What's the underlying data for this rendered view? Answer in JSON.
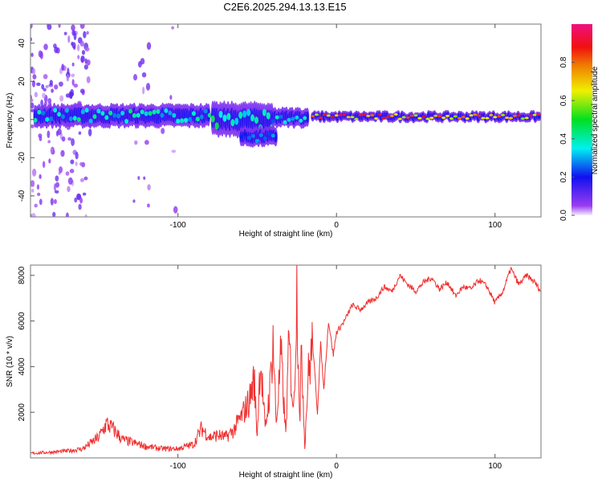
{
  "title": "C2E6.2025.294.13.13.E15",
  "chart_data": [
    {
      "type": "heatmap",
      "name": "spectrogram",
      "xlabel": "Height of straight line (km)",
      "ylabel": "Frequency (Hz)",
      "xlim": [
        -193,
        129
      ],
      "ylim": [
        -51,
        50
      ],
      "xticks": [
        -100,
        0,
        100
      ],
      "yticks": [
        -40,
        -20,
        0,
        20,
        40
      ],
      "colorbar": {
        "label": "Normalized spectral amplitude",
        "range": [
          0,
          1
        ],
        "ticks": [
          "0.0",
          "0.2",
          "0.4",
          "0.6",
          "0.8"
        ]
      },
      "bands": [
        {
          "x0": -190,
          "x1": -80,
          "f_center": 2,
          "f_half_width": 6,
          "amp": 0.45
        },
        {
          "x0": -78,
          "x1": -40,
          "f_center": 0,
          "f_half_width": 9,
          "amp": 0.5
        },
        {
          "x0": -60,
          "x1": -38,
          "f_center": -9,
          "f_half_width": 5,
          "amp": 0.3
        },
        {
          "x0": -40,
          "x1": -18,
          "f_center": 1,
          "f_half_width": 5,
          "amp": 0.4
        },
        {
          "x0": -15,
          "x1": 129,
          "f_center": 1.5,
          "f_half_width": 2.5,
          "amp": 0.95
        }
      ],
      "noise_regions": [
        {
          "x0": -193,
          "x1": -155,
          "density": 0.35
        },
        {
          "x0": -128,
          "x1": -118,
          "density": 0.15
        },
        {
          "x0": -110,
          "x1": -100,
          "density": 0.05
        }
      ]
    },
    {
      "type": "line",
      "name": "snr",
      "xlabel": "Height of straight line (km)",
      "ylabel": "SNR (10 * v/v)",
      "xlim": [
        -193,
        129
      ],
      "ylim": [
        0,
        8450
      ],
      "xticks": [
        -100,
        0,
        100
      ],
      "yticks": [
        2000,
        4000,
        6000,
        8000
      ],
      "color": "#f03030",
      "x": [
        -193,
        -180,
        -170,
        -160,
        -150,
        -145,
        -140,
        -135,
        -130,
        -120,
        -110,
        -100,
        -90,
        -85,
        -80,
        -75,
        -70,
        -65,
        -60,
        -55,
        -52,
        -50,
        -48,
        -45,
        -42,
        -40,
        -38,
        -35,
        -32,
        -30,
        -27,
        -25,
        -23,
        -22,
        -20,
        -18,
        -15,
        -12,
        -10,
        -8,
        -5,
        -2,
        0,
        5,
        10,
        15,
        20,
        25,
        30,
        35,
        40,
        45,
        50,
        55,
        60,
        65,
        70,
        75,
        80,
        85,
        90,
        95,
        100,
        105,
        110,
        115,
        120,
        125,
        129
      ],
      "y": [
        200,
        250,
        300,
        400,
        900,
        1500,
        1200,
        800,
        700,
        500,
        400,
        400,
        600,
        1300,
        900,
        1000,
        900,
        1200,
        1800,
        2500,
        3500,
        1000,
        4500,
        1200,
        3000,
        5200,
        1500,
        4500,
        1000,
        5000,
        2000,
        7500,
        1500,
        5000,
        500,
        3500,
        5000,
        2000,
        5000,
        3000,
        6000,
        4500,
        5500,
        6000,
        6700,
        6500,
        6800,
        7000,
        7500,
        7300,
        8000,
        7600,
        7300,
        7700,
        7900,
        7400,
        7700,
        7100,
        7500,
        7400,
        7800,
        7500,
        6800,
        7300,
        8300,
        7600,
        8000,
        7700,
        7300
      ]
    }
  ]
}
